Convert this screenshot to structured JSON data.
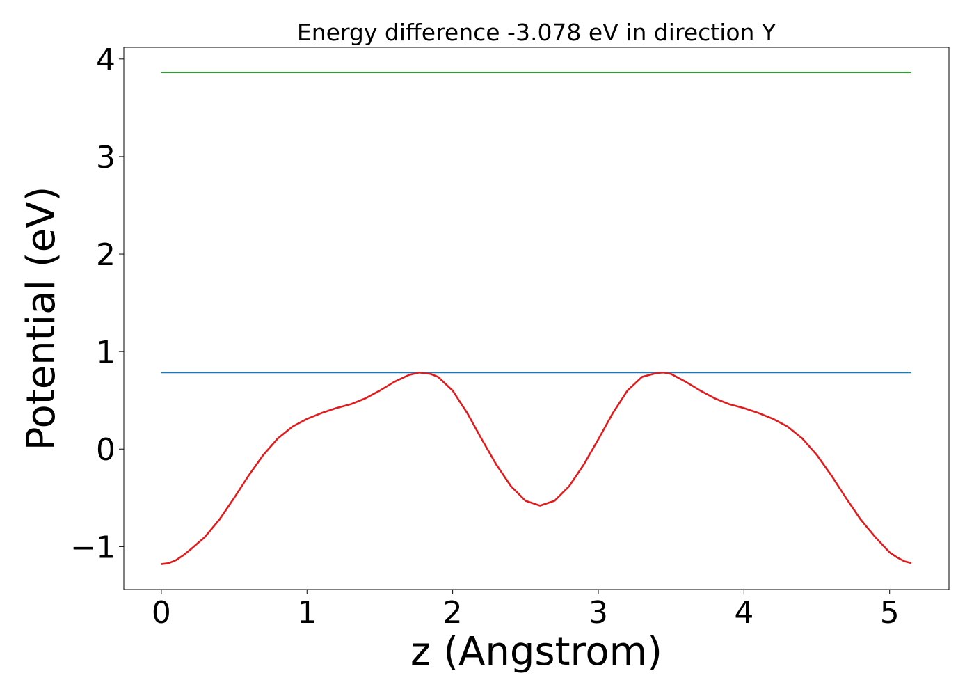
{
  "chart_data": {
    "type": "line",
    "title": "Energy difference -3.078 eV in direction Y",
    "xlabel": "z (Angstrom)",
    "ylabel": "Potential (eV)",
    "xlim": [
      -0.2575,
      5.4075
    ],
    "ylim": [
      -1.44,
      4.12
    ],
    "xticks": [
      0,
      1,
      2,
      3,
      4,
      5
    ],
    "xtick_labels": [
      "0",
      "1",
      "2",
      "3",
      "4",
      "5"
    ],
    "yticks": [
      -1,
      0,
      1,
      2,
      3,
      4
    ],
    "ytick_labels": [
      "−1",
      "0",
      "1",
      "2",
      "3",
      "4"
    ],
    "grid": false,
    "series": [
      {
        "color": "#1f77b4",
        "x": [
          0,
          5.15
        ],
        "y": [
          0.785,
          0.785
        ]
      },
      {
        "color": "#2ca02c",
        "x": [
          0,
          5.15
        ],
        "y": [
          3.863,
          3.863
        ]
      },
      {
        "color": "#e31a1c",
        "x": [
          0,
          0.05,
          0.1,
          0.15,
          0.2,
          0.3,
          0.4,
          0.5,
          0.6,
          0.7,
          0.8,
          0.9,
          1.0,
          1.1,
          1.2,
          1.3,
          1.4,
          1.5,
          1.6,
          1.7,
          1.77,
          1.85,
          1.9,
          2.0,
          2.1,
          2.2,
          2.3,
          2.4,
          2.5,
          2.6,
          2.7,
          2.8,
          2.9,
          3.0,
          3.1,
          3.2,
          3.3,
          3.4,
          3.45,
          3.5,
          3.6,
          3.7,
          3.8,
          3.9,
          4.0,
          4.1,
          4.2,
          4.3,
          4.4,
          4.5,
          4.6,
          4.7,
          4.8,
          4.9,
          5.0,
          5.05,
          5.1,
          5.15
        ],
        "y": [
          -1.18,
          -1.17,
          -1.14,
          -1.09,
          -1.03,
          -0.9,
          -0.72,
          -0.5,
          -0.27,
          -0.06,
          0.11,
          0.23,
          0.31,
          0.37,
          0.42,
          0.46,
          0.52,
          0.6,
          0.69,
          0.76,
          0.785,
          0.77,
          0.74,
          0.6,
          0.37,
          0.1,
          -0.16,
          -0.38,
          -0.53,
          -0.58,
          -0.53,
          -0.38,
          -0.16,
          0.1,
          0.37,
          0.6,
          0.74,
          0.78,
          0.785,
          0.77,
          0.69,
          0.6,
          0.52,
          0.46,
          0.42,
          0.37,
          0.31,
          0.23,
          0.11,
          -0.06,
          -0.27,
          -0.5,
          -0.72,
          -0.9,
          -1.06,
          -1.11,
          -1.15,
          -1.17
        ]
      }
    ]
  }
}
